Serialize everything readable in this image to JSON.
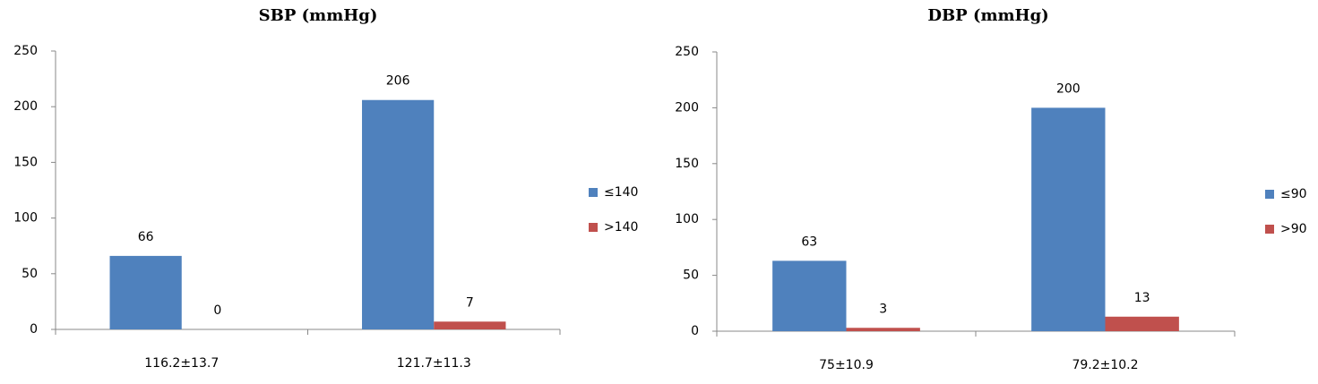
{
  "chart_data": [
    {
      "type": "bar",
      "title": "SBP (mmHg)",
      "categories": [
        "116.2±13.7",
        "121.7±11.3"
      ],
      "series": [
        {
          "name": "≤140",
          "color": "#4f81bd",
          "values": [
            66,
            206
          ]
        },
        {
          "name": ">140",
          "color": "#c0504d",
          "values": [
            0,
            7
          ]
        }
      ],
      "ylim": [
        0,
        250
      ],
      "yticks": [
        0,
        50,
        100,
        150,
        200,
        250
      ],
      "grid": false,
      "legend": "right"
    },
    {
      "type": "bar",
      "title": "DBP (mmHg)",
      "categories": [
        "75±10.9",
        "79.2±10.2"
      ],
      "series": [
        {
          "name": "≤90",
          "color": "#4f81bd",
          "values": [
            63,
            200
          ]
        },
        {
          "name": ">90",
          "color": "#c0504d",
          "values": [
            3,
            13
          ]
        }
      ],
      "ylim": [
        0,
        250
      ],
      "yticks": [
        0,
        50,
        100,
        150,
        200,
        250
      ],
      "grid": false,
      "legend": "right"
    }
  ]
}
